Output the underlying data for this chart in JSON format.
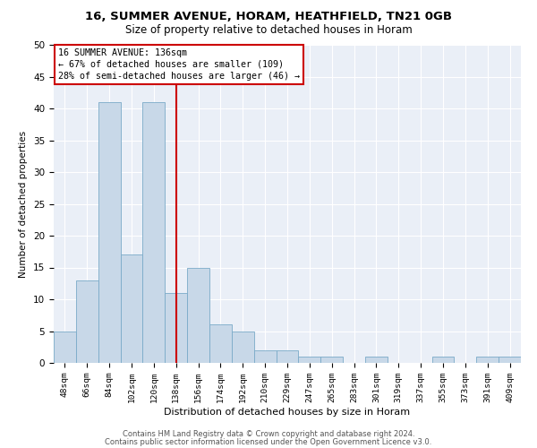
{
  "title1": "16, SUMMER AVENUE, HORAM, HEATHFIELD, TN21 0GB",
  "title2": "Size of property relative to detached houses in Horam",
  "xlabel": "Distribution of detached houses by size in Horam",
  "ylabel": "Number of detached properties",
  "categories": [
    "48sqm",
    "66sqm",
    "84sqm",
    "102sqm",
    "120sqm",
    "138sqm",
    "156sqm",
    "174sqm",
    "192sqm",
    "210sqm",
    "229sqm",
    "247sqm",
    "265sqm",
    "283sqm",
    "301sqm",
    "319sqm",
    "337sqm",
    "355sqm",
    "373sqm",
    "391sqm",
    "409sqm"
  ],
  "values": [
    5,
    13,
    41,
    17,
    41,
    11,
    15,
    6,
    5,
    2,
    2,
    1,
    1,
    0,
    1,
    0,
    0,
    1,
    0,
    1,
    1
  ],
  "bar_color": "#c8d8e8",
  "bar_edge_color": "#7aaac8",
  "vline_x_index": 5,
  "vline_color": "#cc0000",
  "annotation_box_text": "16 SUMMER AVENUE: 136sqm\n← 67% of detached houses are smaller (109)\n28% of semi-detached houses are larger (46) →",
  "annotation_box_color": "#cc0000",
  "ylim": [
    0,
    50
  ],
  "yticks": [
    0,
    5,
    10,
    15,
    20,
    25,
    30,
    35,
    40,
    45,
    50
  ],
  "background_color": "#eaeff7",
  "footer1": "Contains HM Land Registry data © Crown copyright and database right 2024.",
  "footer2": "Contains public sector information licensed under the Open Government Licence v3.0."
}
